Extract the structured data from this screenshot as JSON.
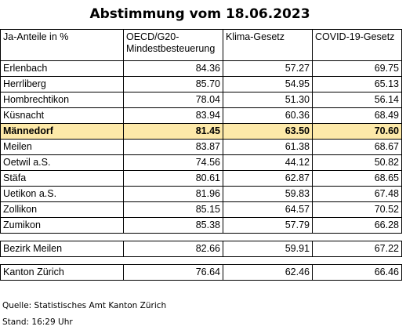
{
  "title": "Abstimmung vom 18.06.2023",
  "header": {
    "col0": "Ja-Anteile in %",
    "col1_line1": "OECD/G20-",
    "col1_line2": "Mindestbesteuerung",
    "col2": "Klima-Gesetz",
    "col3": "COVID-19-Gesetz"
  },
  "rows": [
    {
      "name": "Erlenbach",
      "v1": "84.36",
      "v2": "57.27",
      "v3": "69.75",
      "highlight": false
    },
    {
      "name": "Herrliberg",
      "v1": "85.70",
      "v2": "54.95",
      "v3": "65.13",
      "highlight": false
    },
    {
      "name": "Hombrechtikon",
      "v1": "78.04",
      "v2": "51.30",
      "v3": "56.14",
      "highlight": false
    },
    {
      "name": "Küsnacht",
      "v1": "83.94",
      "v2": "60.36",
      "v3": "68.49",
      "highlight": false
    },
    {
      "name": "Männedorf",
      "v1": "81.45",
      "v2": "63.50",
      "v3": "70.60",
      "highlight": true
    },
    {
      "name": "Meilen",
      "v1": "83.87",
      "v2": "61.38",
      "v3": "68.67",
      "highlight": false
    },
    {
      "name": "Oetwil a.S.",
      "v1": "74.56",
      "v2": "44.12",
      "v3": "50.82",
      "highlight": false
    },
    {
      "name": "Stäfa",
      "v1": "80.61",
      "v2": "62.87",
      "v3": "68.65",
      "highlight": false
    },
    {
      "name": "Uetikon a.S.",
      "v1": "81.96",
      "v2": "59.83",
      "v3": "67.48",
      "highlight": false
    },
    {
      "name": "Zollikon",
      "v1": "85.15",
      "v2": "64.57",
      "v3": "70.52",
      "highlight": false
    },
    {
      "name": "Zumikon",
      "v1": "85.38",
      "v2": "57.79",
      "v3": "66.28",
      "highlight": false
    }
  ],
  "summary": [
    {
      "name": "Bezirk Meilen",
      "v1": "82.66",
      "v2": "59.91",
      "v3": "67.22"
    },
    {
      "name": "Kanton Zürich",
      "v1": "76.64",
      "v2": "62.46",
      "v3": "66.46"
    }
  ],
  "footer": {
    "source": "Quelle: Statistisches Amt Kanton Zürich",
    "time": "Stand: 16:29 Uhr"
  },
  "colors": {
    "highlight": "#fde9a9"
  }
}
